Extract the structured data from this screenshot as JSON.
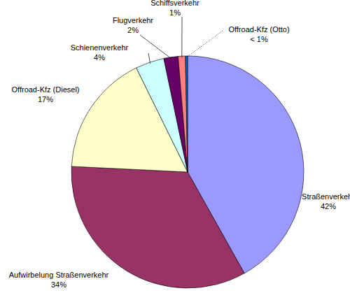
{
  "chart_data": {
    "type": "pie",
    "categories": [
      "Straßenverkehr",
      "Aufwirbelung Straßenverkehr",
      "Offroad-Kfz (Diesel)",
      "Schienenverkehr",
      "Flugverkehr",
      "Schiffsverkehr",
      "Offroad-Kfz (Otto)"
    ],
    "values": [
      42,
      34,
      17,
      4,
      2,
      1,
      0.3
    ],
    "value_labels": [
      "42%",
      "34%",
      "17%",
      "4%",
      "2%",
      "1%",
      "< 1%"
    ],
    "colors": [
      "#9999ff",
      "#993366",
      "#ffffcc",
      "#ccffff",
      "#660066",
      "#ff8080",
      "#0066cc"
    ],
    "data_labels": true
  }
}
